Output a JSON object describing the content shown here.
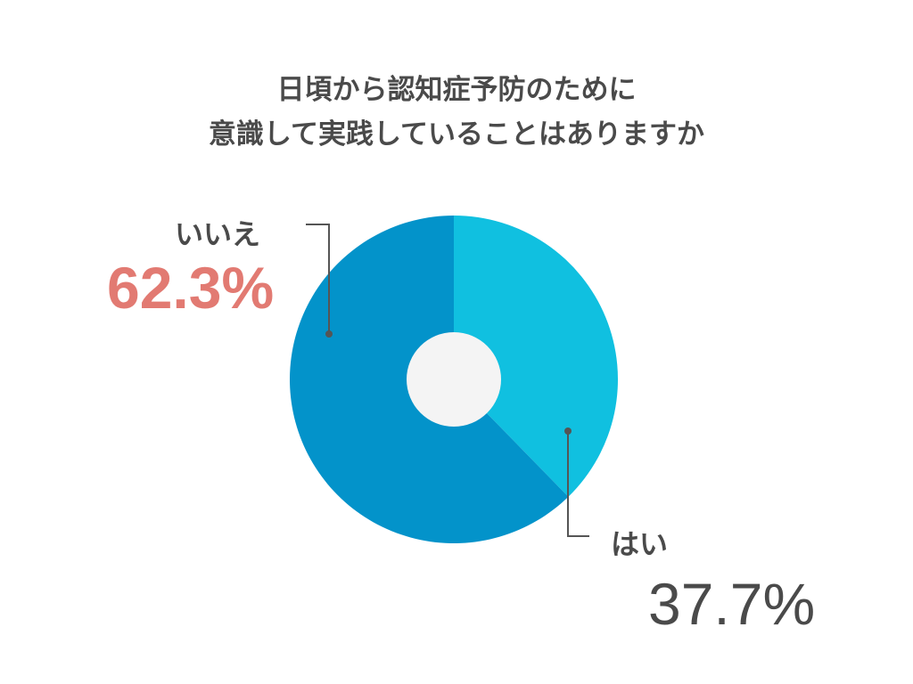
{
  "chart_data": {
    "type": "pie",
    "title_lines": [
      "日頃から認知症予防のために",
      "意識して実践していることはありますか"
    ],
    "slices": [
      {
        "label": "はい",
        "value": 37.7,
        "value_label": "37.7%",
        "color": "#10c0e0"
      },
      {
        "label": "いいえ",
        "value": 62.3,
        "value_label": "62.3%",
        "color": "#0393ca"
      }
    ],
    "center_color": "#f4f4f4",
    "highlight_color": "#e27a72",
    "text_color": "#4a4a4a"
  }
}
